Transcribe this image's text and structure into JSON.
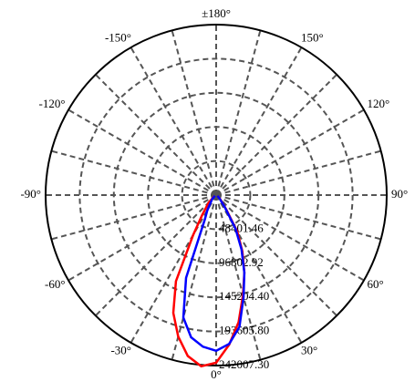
{
  "chart_data": {
    "type": "polar",
    "rlim": [
      0,
      242007.3
    ],
    "rticks": [
      48401.46,
      96802.92,
      {
        "value": 145204.4,
        "label": "145204.40"
      },
      {
        "value": 193605.8,
        "label": "193605.80"
      },
      {
        "value": 242007.3,
        "label": "242007.30"
      }
    ],
    "angle_ticks": [
      {
        "value": 0,
        "label": "0°"
      },
      {
        "value": 30,
        "label": "30°"
      },
      {
        "value": 60,
        "label": "60°"
      },
      {
        "value": 90,
        "label": "90°"
      },
      {
        "value": 120,
        "label": "120°"
      },
      {
        "value": 150,
        "label": "150°"
      },
      {
        "value": 180,
        "label": "±180°"
      },
      {
        "value": -150,
        "label": "-150°"
      },
      {
        "value": -120,
        "label": "-120°"
      },
      {
        "value": -90,
        "label": "-90°"
      },
      {
        "value": -60,
        "label": "-60°"
      },
      {
        "value": -30,
        "label": "-30°"
      }
    ],
    "grid": true,
    "x": [
      -60,
      -45,
      -35,
      -30,
      -25,
      -20,
      -15,
      -10,
      -5,
      0,
      5,
      10,
      15,
      20,
      25,
      30,
      35,
      45,
      60
    ],
    "series": [
      {
        "color": "#ff0000",
        "values": [
          3000,
          15000,
          35000,
          65000,
          135000,
          178000,
          208000,
          232000,
          244000,
          238000,
          213000,
          183000,
          147000,
          117000,
          88000,
          60000,
          25000,
          8000,
          2000
        ]
      },
      {
        "color": "#0000ff",
        "values": [
          2000,
          8000,
          15000,
          25000,
          38000,
          125000,
          180000,
          205000,
          216000,
          221000,
          212000,
          190000,
          150000,
          117000,
          85000,
          55000,
          22000,
          7000,
          2000
        ]
      }
    ]
  }
}
